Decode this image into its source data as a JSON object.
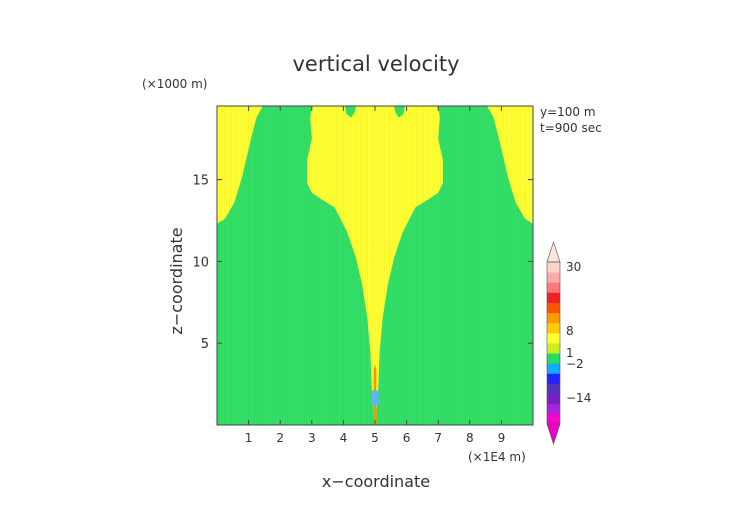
{
  "chart_data": {
    "type": "heatmap",
    "title": "vertical velocity",
    "xlabel": "x−coordinate",
    "ylabel": "z−coordinate",
    "x_unit": "(×1E4 m)",
    "y_unit": "(×1000 m)",
    "annotations": [
      "y=100 m",
      "t=900 sec"
    ],
    "xlim": [
      0,
      10
    ],
    "ylim": [
      0,
      19.5
    ],
    "x_ticks": [
      1,
      2,
      3,
      4,
      5,
      6,
      7,
      8,
      9
    ],
    "y_ticks": [
      5,
      10,
      15
    ],
    "background_color": "#33e067",
    "regions": [
      {
        "name": "left-updraft-region",
        "color": "#ffff33",
        "polygon": [
          [
            0,
            12.3
          ],
          [
            0.25,
            12.6
          ],
          [
            0.55,
            13.6
          ],
          [
            0.8,
            15.2
          ],
          [
            1.05,
            17.3
          ],
          [
            1.25,
            18.8
          ],
          [
            1.45,
            19.5
          ],
          [
            0,
            19.5
          ]
        ]
      },
      {
        "name": "right-updraft-region",
        "color": "#ffff33",
        "polygon": [
          [
            10,
            12.3
          ],
          [
            9.75,
            12.6
          ],
          [
            9.45,
            13.6
          ],
          [
            9.2,
            15.2
          ],
          [
            8.95,
            17.3
          ],
          [
            8.75,
            18.8
          ],
          [
            8.55,
            19.5
          ],
          [
            10,
            19.5
          ]
        ]
      },
      {
        "name": "central-plume-region",
        "color": "#ffff33",
        "polygon": [
          [
            4.98,
            0
          ],
          [
            4.9,
            2.3
          ],
          [
            4.85,
            4.5
          ],
          [
            4.76,
            6.5
          ],
          [
            4.6,
            8.5
          ],
          [
            4.4,
            10.2
          ],
          [
            4.12,
            11.8
          ],
          [
            3.72,
            13.3
          ],
          [
            3.3,
            13.8
          ],
          [
            3.0,
            14.2
          ],
          [
            2.85,
            14.8
          ],
          [
            2.85,
            16.2
          ],
          [
            3.0,
            17.5
          ],
          [
            2.95,
            18.8
          ],
          [
            3.0,
            19.5
          ],
          [
            4.05,
            19.5
          ],
          [
            4.1,
            19.0
          ],
          [
            4.25,
            18.8
          ],
          [
            4.35,
            19.1
          ],
          [
            4.4,
            19.5
          ],
          [
            5.6,
            19.5
          ],
          [
            5.65,
            19.1
          ],
          [
            5.75,
            18.8
          ],
          [
            5.9,
            19.0
          ],
          [
            5.95,
            19.5
          ],
          [
            7.0,
            19.5
          ],
          [
            7.05,
            18.8
          ],
          [
            7.0,
            17.5
          ],
          [
            7.15,
            16.2
          ],
          [
            7.15,
            14.8
          ],
          [
            7.0,
            14.2
          ],
          [
            6.7,
            13.8
          ],
          [
            6.28,
            13.3
          ],
          [
            5.88,
            11.8
          ],
          [
            5.6,
            10.2
          ],
          [
            5.4,
            8.5
          ],
          [
            5.24,
            6.5
          ],
          [
            5.15,
            4.5
          ],
          [
            5.1,
            2.3
          ],
          [
            5.02,
            0
          ]
        ]
      },
      {
        "name": "core-orange-region",
        "color": "#ff9900",
        "polygon": [
          [
            4.95,
            0.1
          ],
          [
            4.96,
            3.4
          ],
          [
            5.0,
            3.7
          ],
          [
            5.04,
            3.4
          ],
          [
            5.05,
            0.1
          ]
        ]
      },
      {
        "name": "core-blue-region",
        "color": "#66b3ff",
        "polygon": [
          [
            4.88,
            1.3
          ],
          [
            4.9,
            2.1
          ],
          [
            5.1,
            2.1
          ],
          [
            5.12,
            1.3
          ],
          [
            5.0,
            1.1
          ]
        ]
      }
    ],
    "colorbar": {
      "labels": [
        "30",
        "8",
        "1",
        "−2",
        "−14"
      ],
      "colors": [
        "#ff00cc",
        "#aa22dd",
        "#7a1fc8",
        "#5533bb",
        "#2222ff",
        "#11aaff",
        "#22dd66",
        "#ccee22",
        "#ffff33",
        "#ffcc00",
        "#ff9900",
        "#ff5500",
        "#ee2222",
        "#ff7777",
        "#ffaaaa",
        "#ffd2cc"
      ],
      "top_arrow_color": "#ffe4dd",
      "bottom_arrow_color": "#ee00cc"
    }
  }
}
